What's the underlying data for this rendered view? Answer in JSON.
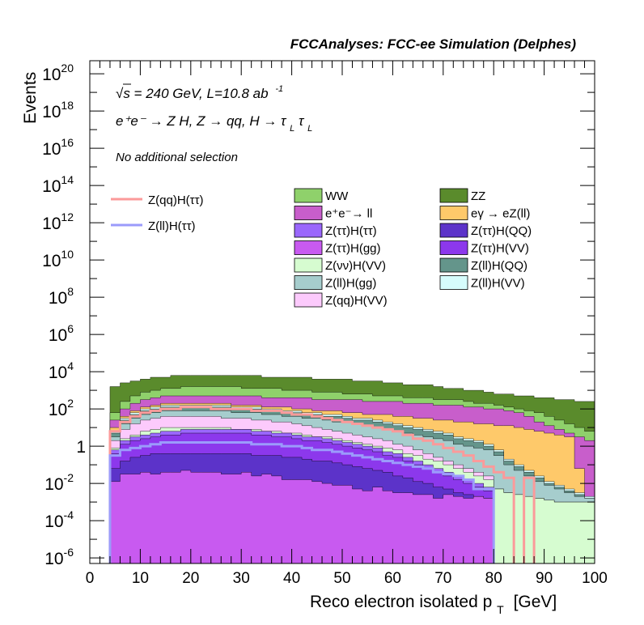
{
  "chart_data": {
    "type": "area",
    "title": "FCCAnalyses: FCC-ee Simulation (Delphes)",
    "xlabel": "Reco electron isolated p",
    "xlabel_sub": "T",
    "xlabel_unit": "[GeV]",
    "ylabel": "Events",
    "xlim": [
      0,
      100
    ],
    "ylim_log10": [
      -6.3,
      20.7
    ],
    "log_y": true,
    "x_ticks": [
      "0",
      "10",
      "20",
      "30",
      "40",
      "50",
      "60",
      "70",
      "80",
      "90",
      "100"
    ],
    "y_ticks": [
      {
        "base": "10",
        "exp": "20",
        "log": 20
      },
      {
        "base": "10",
        "exp": "18",
        "log": 18
      },
      {
        "base": "10",
        "exp": "16",
        "log": 16
      },
      {
        "base": "10",
        "exp": "14",
        "log": 14
      },
      {
        "base": "10",
        "exp": "12",
        "log": 12
      },
      {
        "base": "10",
        "exp": "10",
        "log": 10
      },
      {
        "base": "10",
        "exp": "8",
        "log": 8
      },
      {
        "base": "10",
        "exp": "6",
        "log": 6
      },
      {
        "base": "10",
        "exp": "4",
        "log": 4
      },
      {
        "base": "10",
        "exp": "2",
        "log": 2
      },
      {
        "base": "1",
        "exp": "",
        "log": 0
      },
      {
        "base": "10",
        "exp": "-2",
        "log": -2
      },
      {
        "base": "10",
        "exp": "-4",
        "log": -4
      },
      {
        "base": "10",
        "exp": "-6",
        "log": -6
      }
    ],
    "annotations": {
      "line1": "√s = 240 GeV, L=10.8 ab",
      "line1_sup": "-1",
      "line2": "e⁺e⁻ → Z H, Z → qq, H → τ",
      "line2_sub1": "L",
      "line2_tau2": "τ",
      "line2_sub2": "L",
      "line3": "No additional selection"
    },
    "bin_width": 2,
    "bin_edges_start": 0,
    "stack_order_bottom_to_top": [
      "Z(ττ)H(gg)",
      "Z(ττ)H(QQ)",
      "Z(ττ)H(VV)",
      "Z(ττ)H(ττ)",
      "Z(νν)H(VV)",
      "Z(qq)H(VV)",
      "Z(ll)H(gg)",
      "Z(ll)H(QQ)",
      "Z(ll)H(VV)",
      "eγ → eZ(ll)",
      "e⁺e⁻→ ll",
      "WW",
      "ZZ"
    ],
    "stack_top_log10": {
      "Z(ττ)H(gg)": [
        -7,
        -7,
        -1.9,
        -1.5,
        -1.5,
        -1.4,
        -1.5,
        -1.4,
        -1.4,
        -1.3,
        -1.4,
        -1.4,
        -1.4,
        -1.5,
        -1.5,
        -1.4,
        -1.6,
        -1.5,
        -1.6,
        -1.8,
        -1.8,
        -1.8,
        -1.9,
        -2.0,
        -2.1,
        -2.1,
        -2.3,
        -2.4,
        -2.2,
        -2.4,
        -2.5,
        -2.5,
        -2.6,
        -2.6,
        -2.8,
        -2.6,
        -2.7,
        -2.8,
        -2.7,
        -2.8,
        -7,
        -7,
        -7,
        -7,
        -7,
        -7,
        -7,
        -7,
        -7,
        -7
      ],
      "Z(ττ)H(QQ)": [
        -7,
        -7,
        -1.2,
        -0.8,
        -0.6,
        -0.5,
        -0.4,
        -0.4,
        -0.4,
        -0.4,
        -0.4,
        -0.4,
        -0.4,
        -0.4,
        -0.4,
        -0.4,
        -0.5,
        -0.5,
        -0.5,
        -0.6,
        -0.6,
        -0.7,
        -0.8,
        -0.8,
        -0.9,
        -1.0,
        -1.1,
        -1.2,
        -1.3,
        -1.4,
        -1.6,
        -1.7,
        -1.9,
        -2.0,
        -2.2,
        -2.3,
        -2.5,
        -2.6,
        -2.7,
        -2.8,
        -7,
        -7,
        -7,
        -7,
        -7,
        -7,
        -7,
        -7,
        -7,
        -7
      ],
      "Z(ττ)H(VV)": [
        -7,
        -7,
        -0.4,
        0.1,
        0.3,
        0.4,
        0.5,
        0.6,
        0.6,
        0.7,
        0.7,
        0.7,
        0.7,
        0.7,
        0.7,
        0.7,
        0.6,
        0.6,
        0.5,
        0.5,
        0.4,
        0.3,
        0.3,
        0.2,
        0.1,
        0.0,
        -0.1,
        -0.2,
        -0.3,
        -0.5,
        -0.6,
        -0.8,
        -1.0,
        -1.2,
        -1.4,
        -1.6,
        -1.8,
        -2.0,
        -2.2,
        -2.4,
        -7,
        -7,
        -7,
        -7,
        -7,
        -7,
        -7,
        -7,
        -7,
        -7
      ],
      "Z(ττ)H(ττ)": [
        -7,
        -7,
        -0.2,
        0.3,
        0.5,
        0.6,
        0.7,
        0.8,
        0.8,
        0.9,
        0.9,
        0.9,
        0.9,
        0.9,
        0.9,
        0.9,
        0.8,
        0.8,
        0.7,
        0.7,
        0.6,
        0.5,
        0.5,
        0.4,
        0.3,
        0.2,
        0.1,
        0.0,
        -0.1,
        -0.3,
        -0.4,
        -0.6,
        -0.8,
        -1.0,
        -1.2,
        -1.4,
        -1.6,
        -1.8,
        -2.0,
        -2.2,
        -7,
        -7,
        -7,
        -7,
        -7,
        -7,
        -7,
        -7,
        -7,
        -7
      ],
      "Z(νν)H(VV)": [
        -7,
        -7,
        -0.1,
        0.4,
        0.6,
        0.8,
        0.9,
        1.0,
        1.0,
        1.0,
        1.0,
        1.0,
        1.0,
        1.0,
        0.9,
        0.9,
        0.9,
        0.8,
        0.8,
        0.7,
        0.7,
        0.6,
        0.5,
        0.5,
        0.4,
        0.3,
        0.2,
        0.1,
        0.0,
        -0.1,
        -0.2,
        -0.4,
        -0.5,
        -0.7,
        -0.8,
        -1.0,
        -1.2,
        -1.4,
        -1.6,
        -1.8,
        -2.3,
        -2.5,
        -2.6,
        -2.7,
        -2.8,
        -2.9,
        -3.0,
        -3.0,
        -3.0,
        -3.0
      ],
      "Z(qq)H(VV)": [
        -7,
        -7,
        0.3,
        0.9,
        1.2,
        1.4,
        1.5,
        1.6,
        1.6,
        1.6,
        1.6,
        1.6,
        1.6,
        1.5,
        1.5,
        1.5,
        1.4,
        1.4,
        1.3,
        1.3,
        1.2,
        1.1,
        1.0,
        0.9,
        0.8,
        0.7,
        0.6,
        0.5,
        0.4,
        0.3,
        0.1,
        0.0,
        -0.2,
        -0.4,
        -0.6,
        -0.8,
        -1.0,
        -1.2,
        -1.4,
        -1.6,
        -2.3,
        -2.5,
        -2.6,
        -2.7,
        -2.8,
        -2.9,
        -3.0,
        -3.0,
        -3.0,
        -3.0
      ],
      "Z(ll)H(gg)": [
        -7,
        -7,
        0.5,
        1.2,
        1.5,
        1.7,
        1.8,
        1.9,
        1.9,
        1.9,
        1.9,
        1.9,
        1.9,
        1.9,
        1.8,
        1.8,
        1.8,
        1.7,
        1.7,
        1.6,
        1.6,
        1.5,
        1.5,
        1.4,
        1.3,
        1.3,
        1.2,
        1.1,
        1.0,
        0.9,
        0.8,
        0.7,
        0.6,
        0.5,
        0.4,
        0.3,
        0.1,
        0.0,
        -0.1,
        -0.2,
        -0.5,
        -1.0,
        -1.3,
        -1.6,
        -1.9,
        -2.1,
        -2.3,
        -2.5,
        -2.7,
        -2.8
      ],
      "Z(ll)H(QQ)": [
        -7,
        -7,
        0.7,
        1.4,
        1.7,
        1.9,
        2.0,
        2.1,
        2.1,
        2.1,
        2.1,
        2.1,
        2.1,
        2.1,
        2.0,
        2.0,
        2.0,
        1.9,
        1.9,
        1.8,
        1.8,
        1.7,
        1.7,
        1.6,
        1.6,
        1.5,
        1.4,
        1.4,
        1.3,
        1.2,
        1.1,
        1.0,
        0.9,
        0.8,
        0.7,
        0.6,
        0.4,
        0.3,
        0.2,
        0.0,
        -0.3,
        -0.8,
        -1.1,
        -1.4,
        -1.7,
        -2.0,
        -2.2,
        -2.4,
        -2.6,
        -2.8
      ],
      "Z(ll)H(VV)": [
        -7,
        -7,
        0.8,
        1.5,
        1.8,
        2.0,
        2.1,
        2.2,
        2.2,
        2.2,
        2.2,
        2.2,
        2.2,
        2.2,
        2.1,
        2.1,
        2.1,
        2.0,
        2.0,
        1.9,
        1.9,
        1.8,
        1.8,
        1.7,
        1.7,
        1.6,
        1.5,
        1.5,
        1.4,
        1.3,
        1.2,
        1.1,
        1.0,
        0.9,
        0.8,
        0.7,
        0.5,
        0.4,
        0.3,
        0.1,
        -0.2,
        -0.7,
        -1.0,
        -1.3,
        -1.6,
        -1.9,
        -2.1,
        -2.3,
        -2.5,
        -2.7
      ],
      "eγ → eZ(ll)": [
        -7,
        -7,
        1.0,
        1.6,
        1.9,
        2.1,
        2.2,
        2.3,
        2.3,
        2.3,
        2.3,
        2.3,
        2.3,
        2.3,
        2.2,
        2.2,
        2.2,
        2.1,
        2.1,
        2.1,
        2.0,
        2.0,
        1.9,
        1.9,
        1.9,
        1.8,
        1.8,
        1.7,
        1.7,
        1.7,
        1.6,
        1.6,
        1.5,
        1.5,
        1.4,
        1.4,
        1.3,
        1.3,
        1.2,
        1.2,
        1.1,
        1.1,
        1.0,
        0.9,
        0.8,
        0.7,
        0.6,
        0.5,
        -1.2,
        -7
      ],
      "e⁺e⁻→ ll": [
        -7,
        -7,
        1.4,
        2.0,
        2.3,
        2.5,
        2.6,
        2.7,
        2.7,
        2.7,
        2.7,
        2.7,
        2.7,
        2.7,
        2.7,
        2.7,
        2.7,
        2.6,
        2.6,
        2.6,
        2.6,
        2.6,
        2.5,
        2.5,
        2.5,
        2.5,
        2.5,
        2.4,
        2.4,
        2.4,
        2.4,
        2.3,
        2.3,
        2.3,
        2.2,
        2.2,
        2.2,
        2.1,
        2.1,
        2.0,
        2.0,
        1.9,
        1.8,
        1.6,
        1.3,
        1.1,
        0.9,
        0.7,
        0.5,
        0.3
      ],
      "WW": [
        -7,
        -7,
        1.8,
        2.4,
        2.7,
        2.9,
        3.0,
        3.1,
        3.1,
        3.2,
        3.2,
        3.2,
        3.2,
        3.2,
        3.2,
        3.1,
        3.1,
        3.1,
        3.1,
        3.0,
        3.0,
        3.0,
        2.9,
        2.9,
        2.9,
        2.8,
        2.8,
        2.8,
        2.7,
        2.7,
        2.7,
        2.6,
        2.6,
        2.6,
        2.5,
        2.5,
        2.5,
        2.4,
        2.3,
        2.3,
        2.2,
        2.1,
        2.0,
        1.9,
        1.8,
        1.6,
        1.4,
        1.2,
        1.0,
        0.8
      ],
      "ZZ": [
        -7,
        -7,
        3.2,
        3.4,
        3.5,
        3.6,
        3.7,
        3.7,
        3.8,
        3.8,
        3.8,
        3.8,
        3.8,
        3.8,
        3.8,
        3.8,
        3.8,
        3.7,
        3.7,
        3.7,
        3.7,
        3.7,
        3.6,
        3.6,
        3.6,
        3.6,
        3.5,
        3.5,
        3.5,
        3.4,
        3.4,
        3.3,
        3.3,
        3.3,
        3.2,
        3.1,
        3.1,
        3.0,
        3.0,
        2.9,
        2.8,
        2.8,
        2.7,
        2.7,
        2.6,
        2.6,
        2.5,
        2.5,
        2.4,
        2.4
      ]
    },
    "stack_colors": {
      "WW": "#8fd16b",
      "ZZ": "#5a8b2c",
      "e⁺e⁻→ ll": "#c85ecb",
      "eγ → eZ(ll)": "#fec96a",
      "Z(ττ)H(ττ)": "#9a67fc",
      "Z(ττ)H(QQ)": "#5c33c9",
      "Z(ττ)H(gg)": "#c85af0",
      "Z(ττ)H(VV)": "#8c38ec",
      "Z(νν)H(VV)": "#d6fcd0",
      "Z(ll)H(QQ)": "#64958b",
      "Z(ll)H(gg)": "#a6cdcd",
      "Z(ll)H(VV)": "#d6fcfc",
      "Z(qq)H(VV)": "#fccafc"
    },
    "legend_stack": [
      [
        "WW",
        "ZZ"
      ],
      [
        "e⁺e⁻→ ll",
        "eγ → eZ(ll)"
      ],
      [
        "Z(ττ)H(ττ)",
        "Z(ττ)H(QQ)"
      ],
      [
        "Z(ττ)H(gg)",
        "Z(ττ)H(VV)"
      ],
      [
        "Z(νν)H(VV)",
        "Z(ll)H(QQ)"
      ],
      [
        "Z(ll)H(gg)",
        "Z(ll)H(VV)"
      ],
      [
        "Z(qq)H(VV)",
        ""
      ]
    ],
    "signal_lines": [
      {
        "name": "Z(qq)H(ττ)",
        "color": "#fb9a9a",
        "log10": [
          -7,
          -7,
          0.8,
          1.3,
          1.6,
          1.8,
          1.9,
          2.0,
          2.0,
          2.1,
          2.1,
          2.1,
          2.0,
          2.0,
          2.0,
          2.0,
          1.9,
          1.9,
          1.9,
          1.8,
          1.7,
          1.7,
          1.6,
          1.5,
          1.4,
          1.3,
          1.2,
          1.1,
          1.0,
          0.9,
          0.8,
          0.6,
          0.4,
          0.3,
          0.1,
          -0.1,
          -0.3,
          -0.5,
          -0.8,
          -1.1,
          -1.4,
          -1.7,
          -7,
          -1.7,
          -7,
          -7,
          -7,
          -7,
          -7,
          -7
        ]
      },
      {
        "name": "Z(ll)H(ττ)",
        "color": "#9b9bfb",
        "log10": [
          -7,
          -7,
          -0.5,
          -0.2,
          -0.1,
          0.0,
          0.1,
          0.2,
          0.2,
          0.2,
          0.2,
          0.2,
          0.2,
          0.2,
          0.2,
          0.2,
          0.1,
          0.1,
          0.1,
          0.0,
          0.0,
          -0.1,
          -0.2,
          -0.2,
          -0.3,
          -0.4,
          -0.5,
          -0.6,
          -0.7,
          -0.8,
          -0.9,
          -1.0,
          -1.1,
          -1.2,
          -1.4,
          -1.5,
          -1.6,
          -1.8,
          -2.3,
          -2.3,
          -7,
          -7,
          -7,
          -7,
          -7,
          -7,
          -7,
          -7,
          -7,
          -7
        ]
      }
    ]
  }
}
